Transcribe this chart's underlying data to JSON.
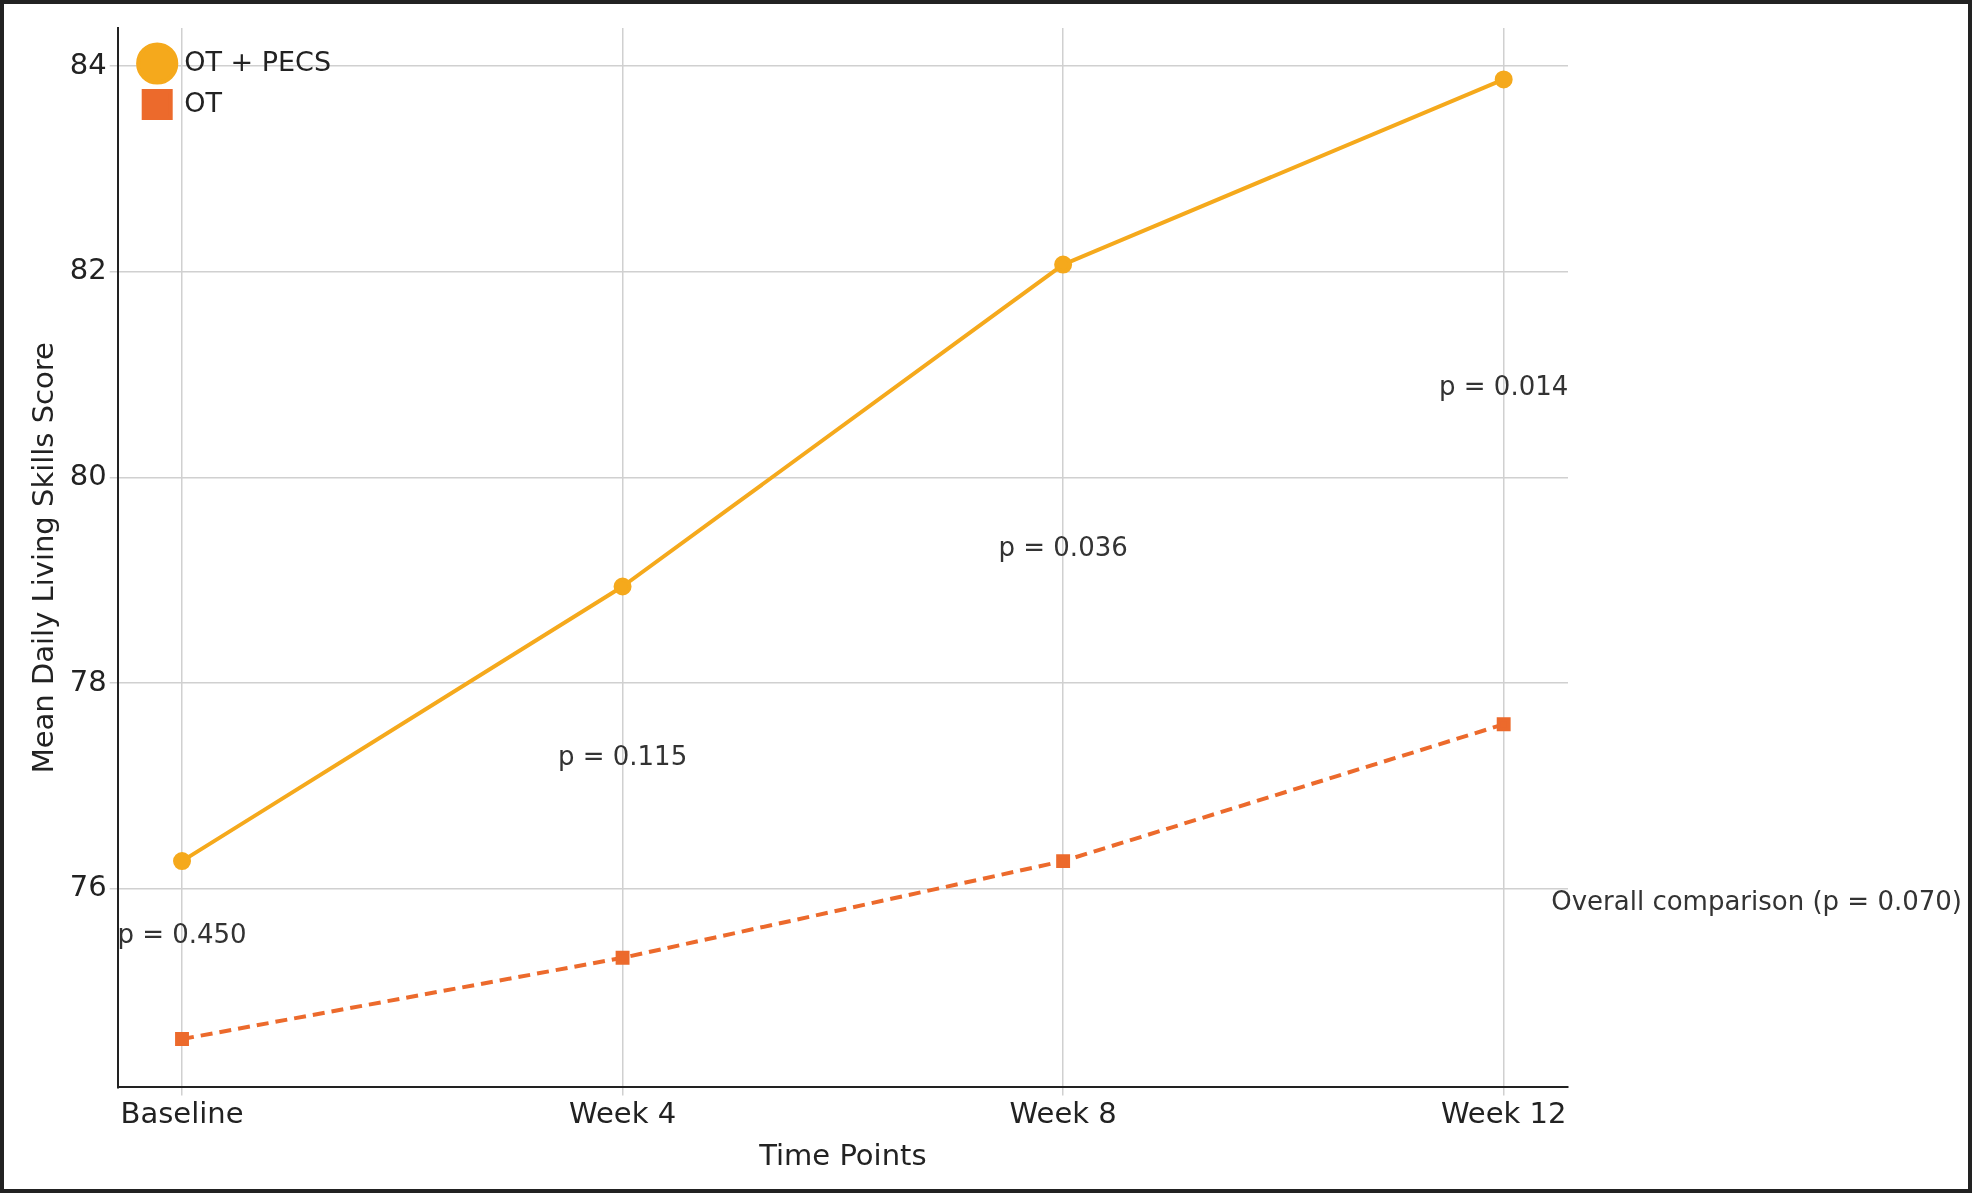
{
  "chart_data": {
    "type": "line",
    "xlabel": "Time Points",
    "ylabel": "Mean Daily Living Skills Score",
    "categories": [
      "Baseline",
      "Week 4",
      "Week 8",
      "Week 12"
    ],
    "series": [
      {
        "name": "OT + PECS",
        "color": "#f5a91c",
        "values": [
          76.27,
          78.94,
          82.07,
          83.87
        ],
        "marker": "circle",
        "line_style": "solid"
      },
      {
        "name": "OT",
        "color": "#ec6a2c",
        "values": [
          74.54,
          75.33,
          76.27,
          77.6
        ],
        "marker": "square",
        "line_style": "dashed"
      }
    ],
    "ylim": [
      74.07,
      84.37
    ],
    "yticks": [
      76,
      78,
      80,
      82,
      84
    ],
    "grid": true,
    "legend": "top left",
    "annotations": [
      "p = 0.450",
      "p = 0.115",
      "p = 0.036",
      "p = 0.014",
      "Overall comparison (p = 0.070)"
    ]
  }
}
